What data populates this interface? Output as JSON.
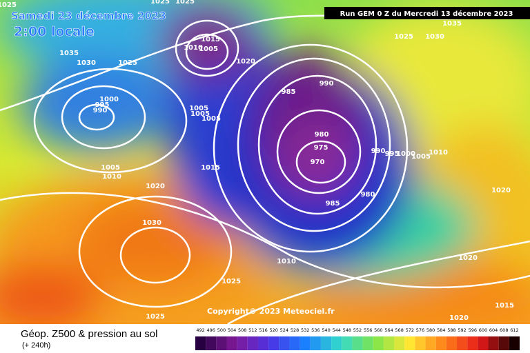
{
  "header": {
    "date": "Samedi 23 décembre 2023",
    "time": "2:00 locale",
    "run": "Run GEM 0 Z du Mercredi 13 décembre 2023"
  },
  "copyright": "Copyright© 2023 Meteociel.fr",
  "footer": {
    "title": "Géop. Z500 & pression au sol",
    "lead": "(+ 240h)"
  },
  "legend": {
    "values": [
      492,
      496,
      500,
      504,
      508,
      512,
      516,
      520,
      524,
      528,
      532,
      536,
      540,
      544,
      548,
      552,
      556,
      560,
      564,
      568,
      572,
      576,
      580,
      584,
      588,
      592,
      596,
      600,
      604,
      608,
      612
    ]
  },
  "isobars": [
    "1025",
    "1025",
    "1025",
    "1035",
    "1030",
    "1025",
    "1000",
    "995",
    "990",
    "1010",
    "1005",
    "1015",
    "1020",
    "1005",
    "1005",
    "1005",
    "985",
    "990",
    "980",
    "975",
    "970",
    "985",
    "980",
    "990",
    "995",
    "1000",
    "1005",
    "1010",
    "1015",
    "1005",
    "1010",
    "1020",
    "1030",
    "1010",
    "1025",
    "1025",
    "1020",
    "1020",
    "1015",
    "1020",
    "1025",
    "1030",
    "1035"
  ]
}
